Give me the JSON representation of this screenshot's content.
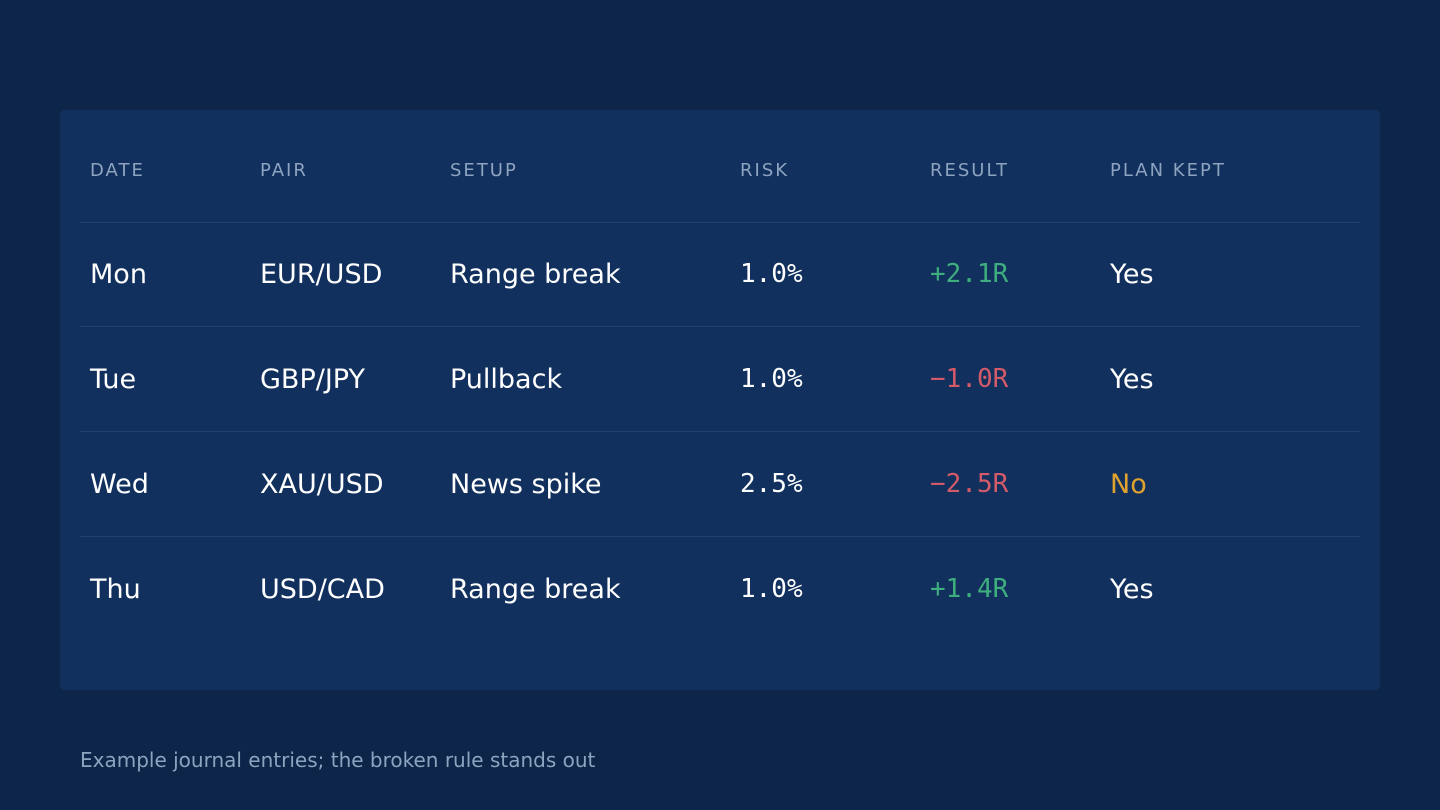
{
  "table": {
    "headers": [
      "DATE",
      "PAIR",
      "SETUP",
      "RISK",
      "RESULT",
      "PLAN KEPT"
    ],
    "rows": [
      {
        "date": "Mon",
        "pair": "EUR/USD",
        "setup": "Range break",
        "risk": "1.0%",
        "result": "+2.1R",
        "result_sign": "positive",
        "plan_kept": "Yes"
      },
      {
        "date": "Tue",
        "pair": "GBP/JPY",
        "setup": "Pullback",
        "risk": "1.0%",
        "result": "−1.0R",
        "result_sign": "negative",
        "plan_kept": "Yes"
      },
      {
        "date": "Wed",
        "pair": "XAU/USD",
        "setup": "News spike",
        "risk": "2.5%",
        "result": "−2.5R",
        "result_sign": "negative",
        "plan_kept": "No"
      },
      {
        "date": "Thu",
        "pair": "USD/CAD",
        "setup": "Range break",
        "risk": "1.0%",
        "result": "+1.4R",
        "result_sign": "positive",
        "plan_kept": "Yes"
      }
    ]
  },
  "caption": "Example journal entries; the broken rule stands out",
  "colors": {
    "background": "#0c2548",
    "panel": "#11305d",
    "positive": "#3fae7f",
    "negative": "#d25a69",
    "warning": "#e0a22f",
    "muted": "#8ea3c0"
  }
}
